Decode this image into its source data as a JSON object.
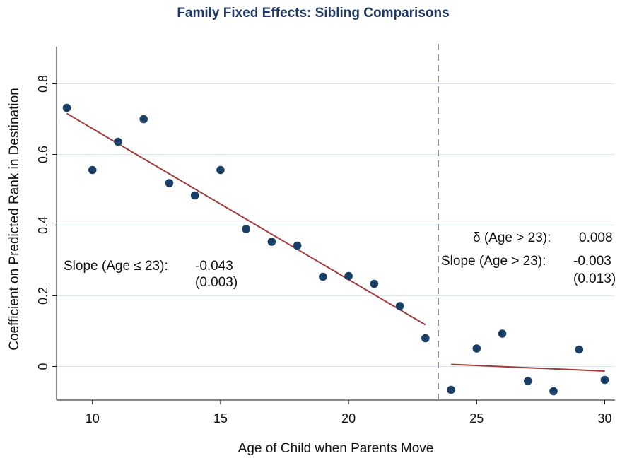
{
  "chart_data": {
    "type": "scatter",
    "title": "Family Fixed Effects: Sibling Comparisons",
    "xlabel": "Age of Child when Parents Move",
    "ylabel": "Coefficient on Predicted Rank in Destination",
    "xlim": [
      8.6,
      30.4
    ],
    "ylim": [
      -0.095,
      0.905
    ],
    "xticks": [
      10,
      15,
      20,
      25,
      30
    ],
    "xtick_labels": [
      "10",
      "15",
      "20",
      "25",
      "30"
    ],
    "yticks": [
      0,
      0.2,
      0.4,
      0.6,
      0.8
    ],
    "ytick_labels": [
      "0",
      "0.2",
      "0.4",
      "0.6",
      "0.8"
    ],
    "grid": "horizontal",
    "colors": {
      "points": "#1a3f66",
      "fit_line": "#a03c3c",
      "cutoff_line": "#888888",
      "grid": "#dde6ec",
      "title": "#1f3864"
    },
    "points": [
      {
        "x": 9,
        "y": 0.732
      },
      {
        "x": 10,
        "y": 0.556
      },
      {
        "x": 11,
        "y": 0.636
      },
      {
        "x": 12,
        "y": 0.7
      },
      {
        "x": 13,
        "y": 0.519
      },
      {
        "x": 14,
        "y": 0.484
      },
      {
        "x": 15,
        "y": 0.556
      },
      {
        "x": 16,
        "y": 0.389
      },
      {
        "x": 17,
        "y": 0.353
      },
      {
        "x": 18,
        "y": 0.342
      },
      {
        "x": 19,
        "y": 0.254
      },
      {
        "x": 20,
        "y": 0.256
      },
      {
        "x": 21,
        "y": 0.234
      },
      {
        "x": 22,
        "y": 0.171
      },
      {
        "x": 23,
        "y": 0.08
      },
      {
        "x": 24,
        "y": -0.066
      },
      {
        "x": 25,
        "y": 0.051
      },
      {
        "x": 26,
        "y": 0.093
      },
      {
        "x": 27,
        "y": -0.041
      },
      {
        "x": 28,
        "y": -0.07
      },
      {
        "x": 29,
        "y": 0.048
      },
      {
        "x": 30,
        "y": -0.038
      }
    ],
    "fit_lines": [
      {
        "x": [
          9,
          23
        ],
        "y": [
          0.716,
          0.118
        ]
      },
      {
        "x": [
          24,
          30
        ],
        "y": [
          0.006,
          -0.013
        ]
      }
    ],
    "cutoff_x": 23.5,
    "annotations": {
      "left_slope_label": "Slope (Age ≤ 23):",
      "left_slope_value": "-0.043",
      "left_slope_se": "(0.003)",
      "delta_label": "δ (Age > 23):",
      "delta_value": "0.008",
      "right_slope_label": "Slope (Age > 23):",
      "right_slope_value": "-0.003",
      "right_slope_se": "(0.013)"
    }
  }
}
